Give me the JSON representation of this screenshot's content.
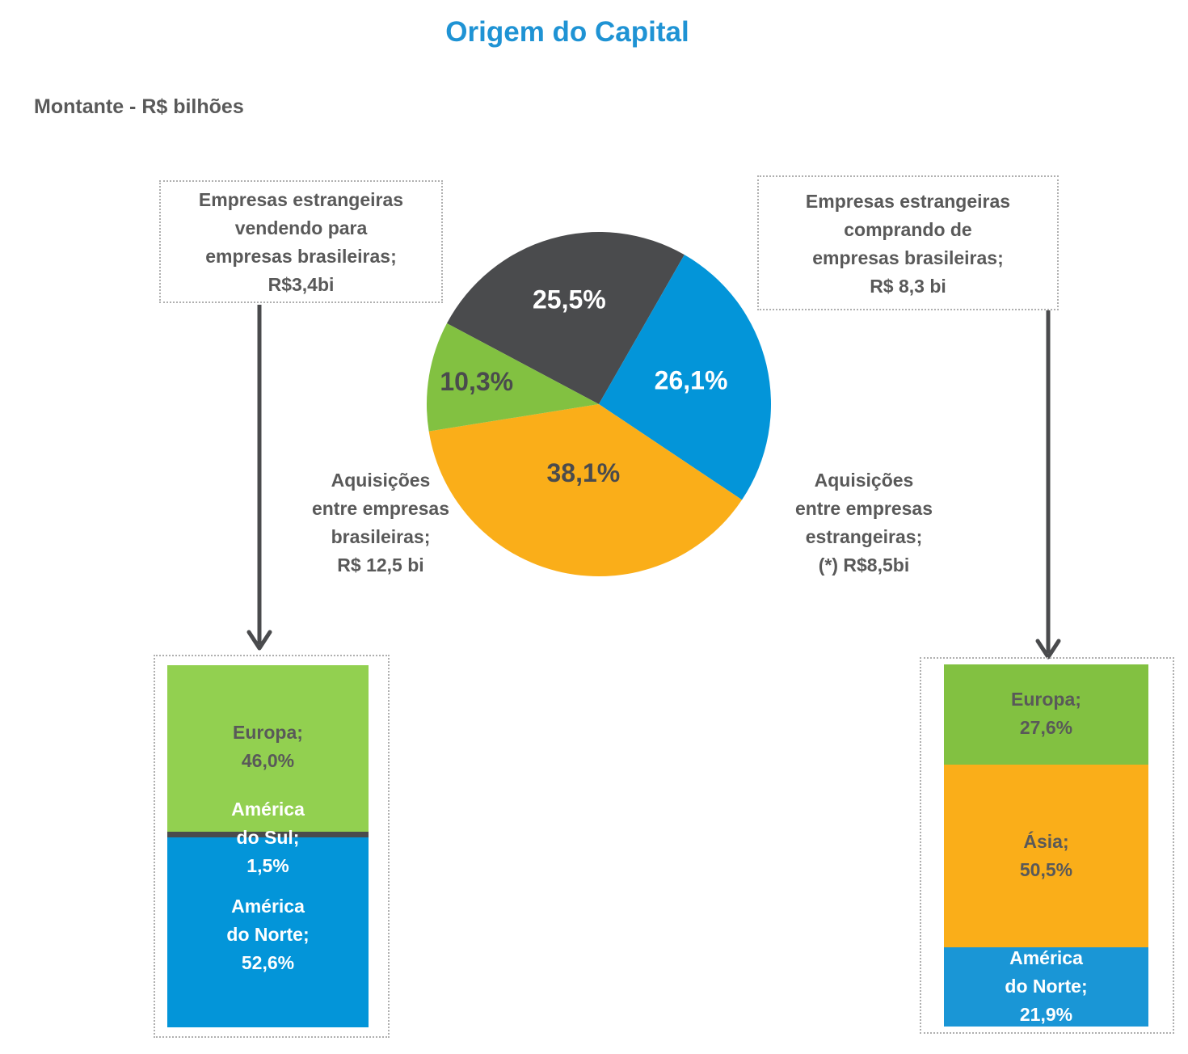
{
  "title": "Origem do Capital",
  "subtitle": "Montante - R$ bilhões",
  "left_box": {
    "line1": "Empresas estrangeiras",
    "line2": "vendendo para",
    "line3": "empresas brasileiras;",
    "line4": "R$3,4bi"
  },
  "right_box": {
    "line1": "Empresas estrangeiras",
    "line2": "comprando de",
    "line3": "empresas brasileiras;",
    "line4": "R$ 8,3 bi"
  },
  "left_label": {
    "line1": "Aquisições",
    "line2": "entre empresas",
    "line3": "brasileiras;",
    "line4": "R$ 12,5 bi"
  },
  "right_label": {
    "line1": "Aquisições",
    "line2": "entre empresas",
    "line3": "estrangeiras;",
    "line4": "(*) R$8,5bi"
  },
  "colors": {
    "dark": "#4A4B4D",
    "blue": "#0395D9",
    "orange": "#FAAE19",
    "green": "#82C141",
    "light_green": "#92D050",
    "na_blue": "#1A96D6"
  },
  "chart_data": [
    {
      "type": "pie",
      "title": "Origem do Capital",
      "slices": [
        {
          "name": "Empresas estrangeiras comprando de empresas brasileiras",
          "value": 25.5,
          "label": "25,5%",
          "color": "#4A4B4D",
          "label_color": "#FFFFFF"
        },
        {
          "name": "Aquisições entre empresas estrangeiras",
          "value": 26.1,
          "label": "26,1%",
          "color": "#0395D9",
          "label_color": "#FFFFFF"
        },
        {
          "name": "Aquisições entre empresas brasileiras",
          "value": 38.1,
          "label": "38,1%",
          "color": "#FAAE19",
          "label_color": "#4A4B4D"
        },
        {
          "name": "Empresas estrangeiras vendendo para empresas brasileiras",
          "value": 10.3,
          "label": "10,3%",
          "color": "#82C141",
          "label_color": "#4A4B4D"
        }
      ]
    },
    {
      "type": "bar",
      "stacked": true,
      "name": "Empresas estrangeiras vendendo para empresas brasileiras",
      "segments": [
        {
          "line1": "Europa;",
          "line2": "",
          "pct": "46,0%",
          "value": 46.0,
          "color": "#92D050",
          "text_color": "#595959"
        },
        {
          "line1": "América",
          "line2": "do Sul;",
          "pct": "1,5%",
          "value": 1.5,
          "color": "#4A4B4D",
          "text_color": "#FFFFFF"
        },
        {
          "line1": "América",
          "line2": "do Norte;",
          "pct": "52,6%",
          "value": 52.6,
          "color": "#0395D9",
          "text_color": "#FFFFFF"
        }
      ]
    },
    {
      "type": "bar",
      "stacked": true,
      "name": "Empresas estrangeiras comprando de empresas brasileiras",
      "segments": [
        {
          "line1": "Europa;",
          "line2": "",
          "pct": "27,6%",
          "value": 27.6,
          "color": "#82C141",
          "text_color": "#595959"
        },
        {
          "line1": "Ásia;",
          "line2": "",
          "pct": "50,5%",
          "value": 50.5,
          "color": "#FAAE19",
          "text_color": "#595959"
        },
        {
          "line1": "América",
          "line2": "do Norte;",
          "pct": "21,9%",
          "value": 21.9,
          "color": "#1A96D6",
          "text_color": "#FFFFFF"
        }
      ]
    }
  ]
}
